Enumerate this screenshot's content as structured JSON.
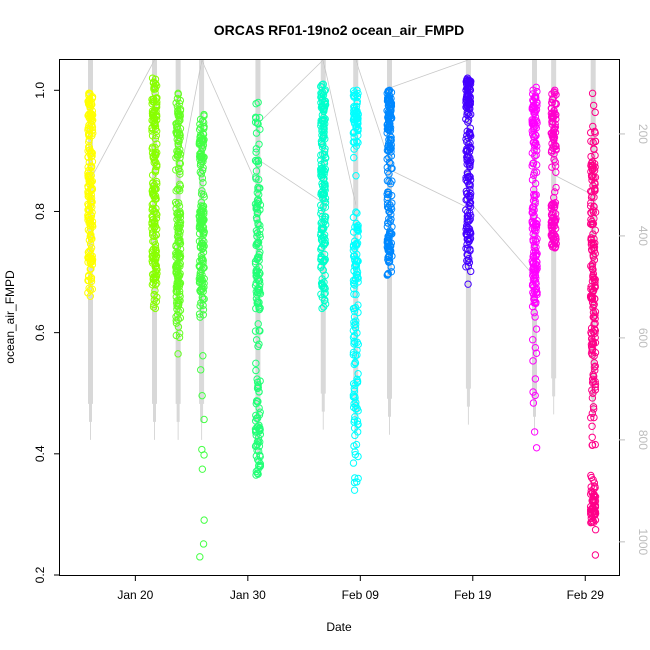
{
  "chart_data": {
    "type": "scatter",
    "title": "ORCAS RF01-19no2 ocean_air_FMPD",
    "xlabel": "Date",
    "ylabel": "ocean_air_FMPD",
    "x_ticks": [
      "Jan 20",
      "Jan 30",
      "Feb 09",
      "Feb 19",
      "Feb 29"
    ],
    "x_tick_positions": [
      20,
      30,
      40,
      50,
      60
    ],
    "xlim": [
      13.3,
      63
    ],
    "ylim": [
      0.2,
      1.05
    ],
    "y_ticks": [
      0.2,
      0.4,
      0.6,
      0.8,
      1.0
    ],
    "y_tick_labels": [
      "0.2",
      "0.4",
      "0.6",
      "0.8",
      "1.0"
    ],
    "right_axis": {
      "label": "",
      "ticks": [
        200,
        400,
        600,
        800,
        1000
      ],
      "tick_labels": [
        "200",
        "400",
        "600",
        "800",
        "1000"
      ],
      "lim": [
        55,
        1065
      ],
      "reversed": true,
      "color": "#bdbdbd"
    },
    "grid": false,
    "series": [
      {
        "color": "#ffff00",
        "x": 16.0,
        "y_min": 0.66,
        "y_max": 0.995,
        "clusters": [
          [
            0.74,
            0.05
          ],
          [
            0.84,
            0.03
          ],
          [
            0.95,
            0.03
          ]
        ]
      },
      {
        "color": "#88ff00",
        "x": 21.7,
        "y_min": 0.64,
        "y_max": 1.02,
        "clusters": [
          [
            0.72,
            0.04
          ],
          [
            0.85,
            0.04
          ],
          [
            0.97,
            0.03
          ]
        ]
      },
      {
        "color": "#66ff22",
        "x": 23.8,
        "y_min": 0.565,
        "y_max": 0.995,
        "clusters": [
          [
            0.76,
            0.05
          ],
          [
            0.68,
            0.04
          ],
          [
            0.92,
            0.04
          ]
        ]
      },
      {
        "color": "#44ff44",
        "x": 25.9,
        "y_min": 0.23,
        "y_max": 0.96,
        "clusters": [
          [
            0.78,
            0.02
          ],
          [
            0.91,
            0.03
          ],
          [
            0.7,
            0.04
          ]
        ]
      },
      {
        "color": "#22ff77",
        "x": 30.9,
        "y_min": 0.365,
        "y_max": 0.98,
        "clusters": [
          [
            0.68,
            0.05
          ],
          [
            0.45,
            0.05
          ],
          [
            0.82,
            0.06
          ]
        ]
      },
      {
        "color": "#00ffcc",
        "x": 36.7,
        "y_min": 0.64,
        "y_max": 1.01,
        "clusters": [
          [
            0.73,
            0.05
          ],
          [
            0.96,
            0.03
          ],
          [
            0.85,
            0.04
          ]
        ]
      },
      {
        "color": "#00ffff",
        "x": 39.6,
        "y_min": 0.34,
        "y_max": 1.0,
        "clusters": [
          [
            0.72,
            0.04
          ],
          [
            0.96,
            0.03
          ],
          [
            0.5,
            0.08
          ]
        ]
      },
      {
        "color": "#0088ff",
        "x": 42.6,
        "y_min": 0.695,
        "y_max": 1.0,
        "clusters": [
          [
            0.75,
            0.03
          ],
          [
            0.9,
            0.05
          ],
          [
            0.98,
            0.02
          ]
        ]
      },
      {
        "color": "#4400ff",
        "x": 49.6,
        "y_min": 0.68,
        "y_max": 1.02,
        "clusters": [
          [
            0.78,
            0.04
          ],
          [
            0.9,
            0.05
          ],
          [
            0.99,
            0.02
          ]
        ]
      },
      {
        "color": "#ff00ff",
        "x": 55.5,
        "y_min": 0.41,
        "y_max": 1.005,
        "clusters": [
          [
            0.8,
            0.06
          ],
          [
            0.95,
            0.04
          ],
          [
            0.7,
            0.03
          ]
        ]
      },
      {
        "color": "#ff00cc",
        "x": 57.2,
        "y_min": 0.74,
        "y_max": 1.0,
        "clusters": [
          [
            0.78,
            0.03
          ],
          [
            0.94,
            0.04
          ]
        ]
      },
      {
        "color": "#ff0088",
        "x": 60.7,
        "y_min": 0.233,
        "y_max": 0.995,
        "clusters": [
          [
            0.85,
            0.05
          ],
          [
            0.7,
            0.05
          ],
          [
            0.55,
            0.06
          ],
          [
            0.32,
            0.02
          ]
        ]
      }
    ],
    "altitude_track": {
      "color": "#c8c8c8",
      "vertical_profiles": [
        {
          "x": 16.0,
          "top": 55,
          "bottom": 800
        },
        {
          "x": 21.7,
          "top": 55,
          "bottom": 800
        },
        {
          "x": 23.8,
          "top": 55,
          "bottom": 800
        },
        {
          "x": 25.9,
          "top": 55,
          "bottom": 800
        },
        {
          "x": 30.9,
          "top": 55,
          "bottom": 870
        },
        {
          "x": 36.7,
          "top": 55,
          "bottom": 780
        },
        {
          "x": 39.6,
          "top": 55,
          "bottom": 820
        },
        {
          "x": 42.6,
          "top": 55,
          "bottom": 790
        },
        {
          "x": 49.6,
          "top": 55,
          "bottom": 770
        },
        {
          "x": 55.5,
          "top": 55,
          "bottom": 790
        },
        {
          "x": 57.2,
          "top": 55,
          "bottom": 750
        },
        {
          "x": 60.7,
          "top": 55,
          "bottom": 790
        }
      ],
      "transits": [
        [
          [
            16.0,
            290
          ],
          [
            21.7,
            55
          ]
        ],
        [
          [
            23.8,
            300
          ],
          [
            25.9,
            55
          ]
        ],
        [
          [
            25.9,
            55
          ],
          [
            30.9,
            305
          ]
        ],
        [
          [
            30.9,
            250
          ],
          [
            36.7,
            335
          ]
        ],
        [
          [
            30.9,
            180
          ],
          [
            36.7,
            55
          ]
        ],
        [
          [
            36.7,
            55
          ],
          [
            39.6,
            340
          ]
        ],
        [
          [
            39.6,
            55
          ],
          [
            42.6,
            255
          ]
        ],
        [
          [
            42.6,
            270
          ],
          [
            49.6,
            345
          ]
        ],
        [
          [
            42.6,
            110
          ],
          [
            49.6,
            55
          ]
        ],
        [
          [
            49.6,
            330
          ],
          [
            55.5,
            480
          ]
        ],
        [
          [
            57.2,
            280
          ],
          [
            60.7,
            320
          ]
        ]
      ]
    }
  }
}
